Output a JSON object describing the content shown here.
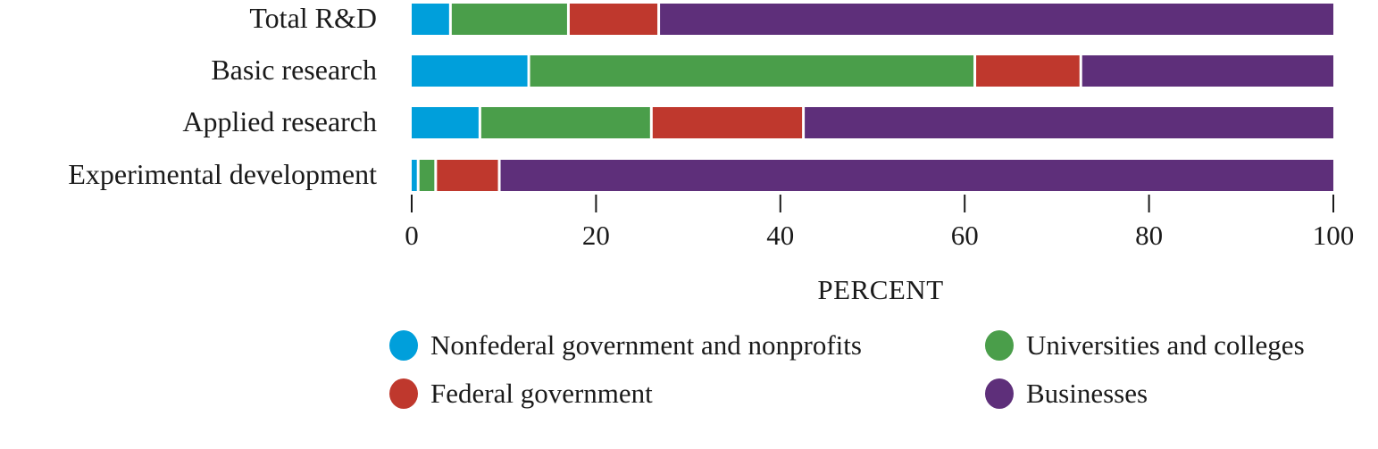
{
  "chart_data": {
    "type": "bar",
    "orientation": "horizontal",
    "stacked": true,
    "title": "",
    "xlabel": "PERCENT",
    "ylabel": "",
    "xlim": [
      0,
      100
    ],
    "xticks": [
      0,
      20,
      40,
      60,
      80,
      100
    ],
    "grid": false,
    "legend_position": "bottom",
    "categories": [
      "Total R&D",
      "Basic research",
      "Applied research",
      "Experimental development"
    ],
    "series": [
      {
        "name": "Nonfederal government and nonprofits",
        "color": "#009fdb",
        "values": [
          4.2,
          12.7,
          7.4,
          0.7
        ]
      },
      {
        "name": "Universities and colleges",
        "color": "#4a9e4a",
        "values": [
          12.8,
          48.4,
          18.6,
          1.9
        ]
      },
      {
        "name": "Federal government",
        "color": "#bf382d",
        "values": [
          9.8,
          11.5,
          16.5,
          6.9
        ]
      },
      {
        "name": "Businesses",
        "color": "#5e2f7a",
        "values": [
          73.2,
          27.4,
          57.5,
          90.5
        ]
      }
    ],
    "legend_order": [
      "Nonfederal government and nonprofits",
      "Universities and colleges",
      "Federal government",
      "Businesses"
    ]
  }
}
